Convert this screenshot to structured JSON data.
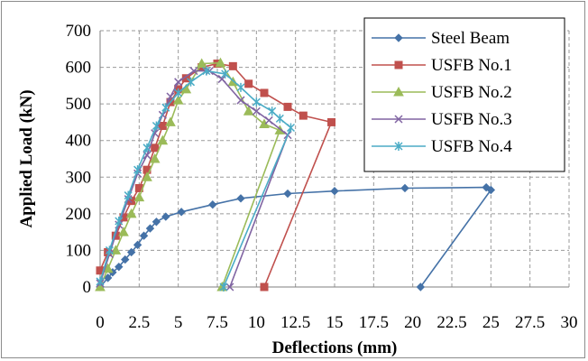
{
  "chart_data": {
    "type": "line",
    "title": "",
    "xlabel": "Deflections (mm)",
    "ylabel": "Applied Load (kN)",
    "xlim": [
      0,
      30
    ],
    "ylim": [
      0,
      700
    ],
    "xticks": [
      "0",
      "2.5",
      "5",
      "7.5",
      "10",
      "12.5",
      "15",
      "17.5",
      "20",
      "22.5",
      "25",
      "27.5",
      "30"
    ],
    "yticks": [
      "0",
      "100",
      "200",
      "300",
      "400",
      "500",
      "600",
      "700"
    ],
    "grid": "dashed",
    "legend_position": "top-right",
    "series": [
      {
        "name": "Steel Beam",
        "color": "#4572A7",
        "marker": "diamond",
        "points": [
          [
            0,
            0
          ],
          [
            0.5,
            25
          ],
          [
            0.8,
            40
          ],
          [
            1.2,
            55
          ],
          [
            1.6,
            75
          ],
          [
            2.0,
            95
          ],
          [
            2.4,
            115
          ],
          [
            2.8,
            140
          ],
          [
            3.2,
            160
          ],
          [
            3.6,
            178
          ],
          [
            4.2,
            192
          ],
          [
            5.2,
            205
          ],
          [
            7.2,
            225
          ],
          [
            9.0,
            242
          ],
          [
            12.0,
            255
          ],
          [
            15.0,
            262
          ],
          [
            19.5,
            270
          ],
          [
            24.7,
            272
          ],
          [
            25.0,
            265
          ],
          [
            20.5,
            0
          ]
        ]
      },
      {
        "name": "USFB No.1",
        "color": "#C0504D",
        "marker": "square",
        "points": [
          [
            0,
            45
          ],
          [
            0.5,
            95
          ],
          [
            1.0,
            140
          ],
          [
            1.5,
            190
          ],
          [
            2.0,
            235
          ],
          [
            2.5,
            270
          ],
          [
            3.0,
            320
          ],
          [
            3.5,
            380
          ],
          [
            4.0,
            440
          ],
          [
            4.5,
            505
          ],
          [
            5.0,
            540
          ],
          [
            5.5,
            570
          ],
          [
            6.5,
            600
          ],
          [
            7.5,
            610
          ],
          [
            8.5,
            603
          ],
          [
            9.5,
            555
          ],
          [
            10.5,
            530
          ],
          [
            12.0,
            492
          ],
          [
            13.0,
            468
          ],
          [
            14.8,
            450
          ],
          [
            10.5,
            0
          ]
        ]
      },
      {
        "name": "USFB No.2",
        "color": "#9BBB59",
        "marker": "triangle",
        "points": [
          [
            0,
            0
          ],
          [
            0.5,
            50
          ],
          [
            1.0,
            100
          ],
          [
            1.5,
            150
          ],
          [
            2.0,
            200
          ],
          [
            2.5,
            245
          ],
          [
            3.0,
            300
          ],
          [
            3.5,
            350
          ],
          [
            4.0,
            400
          ],
          [
            4.5,
            450
          ],
          [
            5.0,
            510
          ],
          [
            5.5,
            540
          ],
          [
            6.5,
            610
          ],
          [
            7.7,
            612
          ],
          [
            8.5,
            560
          ],
          [
            9.5,
            480
          ],
          [
            10.5,
            445
          ],
          [
            11.5,
            428
          ],
          [
            7.8,
            0
          ]
        ]
      },
      {
        "name": "USFB No.3",
        "color": "#8064A2",
        "marker": "x",
        "points": [
          [
            0,
            10
          ],
          [
            0.6,
            90
          ],
          [
            1.2,
            170
          ],
          [
            1.8,
            240
          ],
          [
            2.4,
            310
          ],
          [
            3.0,
            360
          ],
          [
            3.5,
            420
          ],
          [
            4.0,
            470
          ],
          [
            4.5,
            520
          ],
          [
            5.0,
            560
          ],
          [
            6.0,
            590
          ],
          [
            7.0,
            590
          ],
          [
            7.8,
            568
          ],
          [
            9.0,
            510
          ],
          [
            10.0,
            480
          ],
          [
            10.8,
            455
          ],
          [
            12.0,
            415
          ],
          [
            8.3,
            0
          ]
        ]
      },
      {
        "name": "USFB No.4",
        "color": "#4BACC6",
        "marker": "asterisk",
        "points": [
          [
            0,
            15
          ],
          [
            0.6,
            100
          ],
          [
            1.2,
            180
          ],
          [
            1.8,
            250
          ],
          [
            2.4,
            320
          ],
          [
            3.0,
            380
          ],
          [
            3.6,
            440
          ],
          [
            4.2,
            490
          ],
          [
            5.0,
            530
          ],
          [
            5.8,
            560
          ],
          [
            6.8,
            590
          ],
          [
            8.0,
            582
          ],
          [
            9.0,
            545
          ],
          [
            10.0,
            505
          ],
          [
            11.0,
            480
          ],
          [
            11.5,
            460
          ],
          [
            12.2,
            435
          ],
          [
            7.9,
            0
          ]
        ]
      }
    ]
  }
}
